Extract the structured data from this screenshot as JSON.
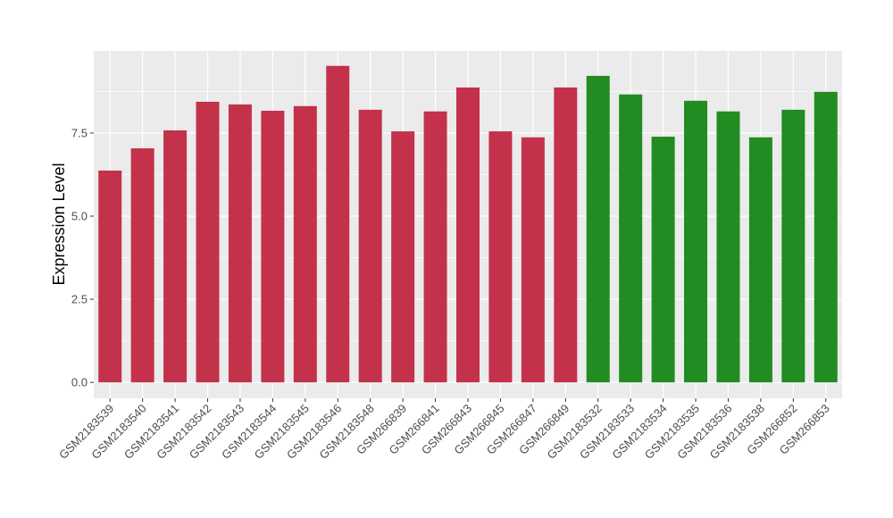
{
  "chart_data": {
    "type": "bar",
    "title": "",
    "xlabel": "",
    "ylabel": "Expression Level",
    "ylim": [
      -0.48,
      9.97
    ],
    "yticks": [
      0.0,
      2.5,
      5.0,
      7.5
    ],
    "ytick_labels": [
      "0.0",
      "2.5",
      "5.0",
      "7.5"
    ],
    "grid": true,
    "legend": "none",
    "categories": [
      "GSM2183539",
      "GSM2183540",
      "GSM2183541",
      "GSM2183542",
      "GSM2183543",
      "GSM2183544",
      "GSM2183545",
      "GSM2183546",
      "GSM2183548",
      "GSM266839",
      "GSM266841",
      "GSM266843",
      "GSM266845",
      "GSM266847",
      "GSM266849",
      "GSM2183532",
      "GSM2183533",
      "GSM2183534",
      "GSM2183535",
      "GSM2183536",
      "GSM2183538",
      "GSM266852",
      "GSM266853"
    ],
    "values": [
      6.37,
      7.04,
      7.58,
      8.44,
      8.36,
      8.17,
      8.31,
      9.52,
      8.2,
      7.55,
      8.15,
      8.87,
      7.55,
      7.37,
      8.87,
      9.22,
      8.66,
      7.39,
      8.47,
      8.15,
      7.37,
      8.2,
      8.74
    ],
    "groups": [
      "a",
      "a",
      "a",
      "a",
      "a",
      "a",
      "a",
      "a",
      "a",
      "a",
      "a",
      "a",
      "a",
      "a",
      "a",
      "b",
      "b",
      "b",
      "b",
      "b",
      "b",
      "b",
      "b"
    ],
    "group_colors": {
      "a": "#c4314b",
      "b": "#228b22"
    }
  }
}
